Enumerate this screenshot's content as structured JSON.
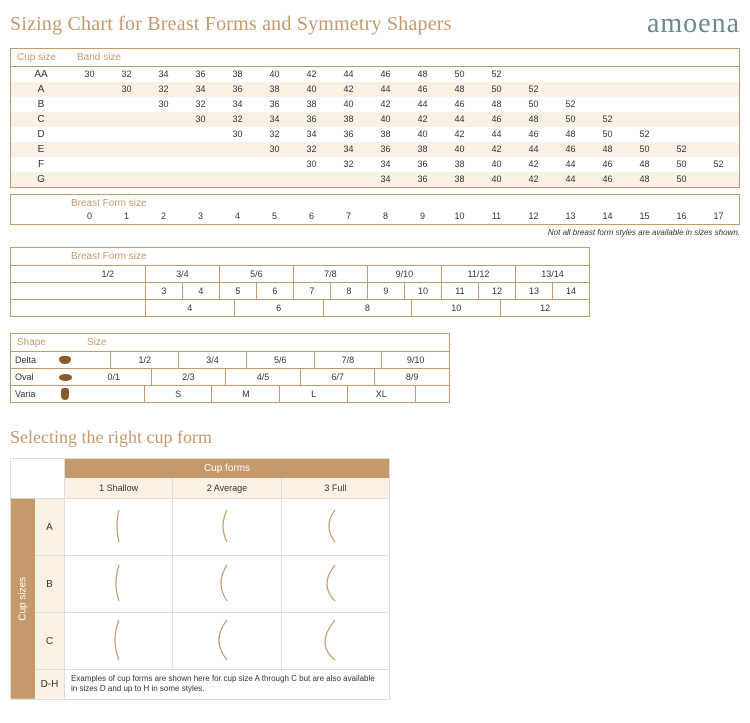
{
  "header": {
    "title": "Sizing Chart for Breast Forms and Symmetry Shapers",
    "brand": "amoena"
  },
  "sizing": {
    "cup_label": "Cup size",
    "band_label": "Band size",
    "cols": 18,
    "rows": [
      {
        "cup": "AA",
        "start": 0,
        "values": [
          "30",
          "32",
          "34",
          "36",
          "38",
          "40",
          "42",
          "44",
          "46",
          "48",
          "50",
          "52"
        ]
      },
      {
        "cup": "A",
        "start": 1,
        "values": [
          "30",
          "32",
          "34",
          "36",
          "38",
          "40",
          "42",
          "44",
          "46",
          "48",
          "50",
          "52"
        ]
      },
      {
        "cup": "B",
        "start": 2,
        "values": [
          "30",
          "32",
          "34",
          "36",
          "38",
          "40",
          "42",
          "44",
          "46",
          "48",
          "50",
          "52"
        ]
      },
      {
        "cup": "C",
        "start": 3,
        "values": [
          "30",
          "32",
          "34",
          "36",
          "38",
          "40",
          "42",
          "44",
          "46",
          "48",
          "50",
          "52"
        ]
      },
      {
        "cup": "D",
        "start": 4,
        "values": [
          "30",
          "32",
          "34",
          "36",
          "38",
          "40",
          "42",
          "44",
          "46",
          "48",
          "50",
          "52"
        ]
      },
      {
        "cup": "E",
        "start": 5,
        "values": [
          "30",
          "32",
          "34",
          "36",
          "38",
          "40",
          "42",
          "44",
          "46",
          "48",
          "50",
          "52"
        ]
      },
      {
        "cup": "F",
        "start": 6,
        "values": [
          "30",
          "32",
          "34",
          "36",
          "38",
          "40",
          "42",
          "44",
          "46",
          "48",
          "50",
          "52"
        ]
      },
      {
        "cup": "G",
        "start": 8,
        "values": [
          "34",
          "36",
          "38",
          "40",
          "42",
          "44",
          "46",
          "48",
          "50"
        ]
      }
    ]
  },
  "breastform1": {
    "label": "Breast Form size",
    "values": [
      "0",
      "1",
      "2",
      "3",
      "4",
      "5",
      "6",
      "7",
      "8",
      "9",
      "10",
      "11",
      "12",
      "13",
      "14",
      "15",
      "16",
      "17"
    ]
  },
  "note": "Not all breast form styles are available in sizes shown.",
  "breastform2": {
    "label": "Breast Form size",
    "row1": [
      "1/2",
      "3/4",
      "5/6",
      "7/8",
      "9/10",
      "11/12",
      "13/14"
    ],
    "row2": [
      "",
      "3",
      "4",
      "5",
      "6",
      "7",
      "8",
      "9",
      "10",
      "11",
      "12",
      "13",
      "14"
    ],
    "row3": [
      "4",
      "6",
      "8",
      "10",
      "12"
    ]
  },
  "shapes": {
    "shape_label": "Shape",
    "size_label": "Size",
    "delta": {
      "name": "Delta",
      "values": [
        "1/2",
        "3/4",
        "5/6",
        "7/8",
        "9/10"
      ]
    },
    "oval": {
      "name": "Oval",
      "values": [
        "0/1",
        "2/3",
        "4/5",
        "6/7",
        "8/9"
      ]
    },
    "varia": {
      "name": "Varia",
      "values": [
        "S",
        "M",
        "L",
        "XL"
      ]
    }
  },
  "cupform": {
    "title": "Selecting the right cup form",
    "header": "Cup forms",
    "side": "Cup sizes",
    "cols": [
      "1 Shallow",
      "2 Average",
      "3 Full"
    ],
    "rows": [
      "A",
      "B",
      "C"
    ],
    "footrow": "D-H",
    "footnote": "Examples of cup forms are shown here for cup size A through C but are also available in sizes D and up to H in some styles."
  },
  "colors": {
    "accent": "#c49a6c",
    "alt_bg": "#faf1e4",
    "brand": "#6b8a8f",
    "shape_fill": "#8b5a2b"
  }
}
